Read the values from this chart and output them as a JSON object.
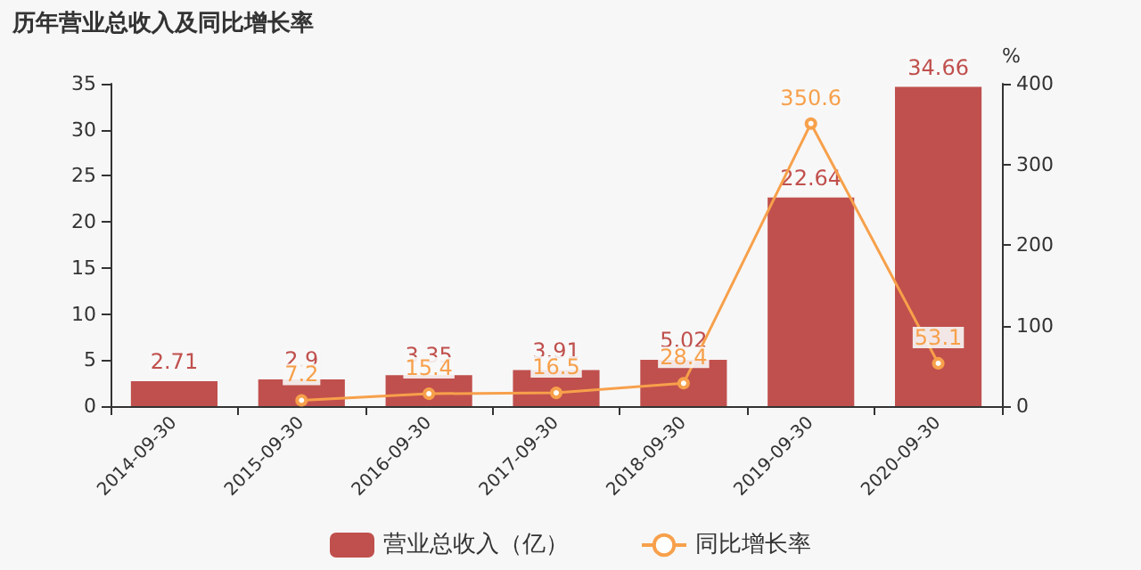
{
  "chart_data": {
    "type": "bar",
    "title": "历年营业总收入及同比增长率",
    "y2label": "%",
    "categories": [
      "2014-09-30",
      "2015-09-30",
      "2016-09-30",
      "2017-09-30",
      "2018-09-30",
      "2019-09-30",
      "2020-09-30"
    ],
    "series": [
      {
        "name": "营业总收入（亿）",
        "color": "#c0504d",
        "values": [
          2.71,
          2.9,
          3.35,
          3.91,
          5.02,
          22.64,
          34.66
        ]
      },
      {
        "name": "同比增长率",
        "type": "line",
        "axis": "y2",
        "color": "#f7a04b",
        "marker": "circle",
        "values": [
          null,
          7.2,
          15.4,
          16.5,
          28.4,
          350.6,
          53.1
        ]
      }
    ],
    "ylim": [
      0,
      35
    ],
    "yticks": [
      0,
      5,
      10,
      15,
      20,
      25,
      30,
      35
    ],
    "y2lim": [
      0,
      400
    ],
    "y2ticks": [
      0,
      100,
      200,
      300,
      400
    ],
    "data_labels": true,
    "grid": false,
    "legend": "bottom"
  }
}
